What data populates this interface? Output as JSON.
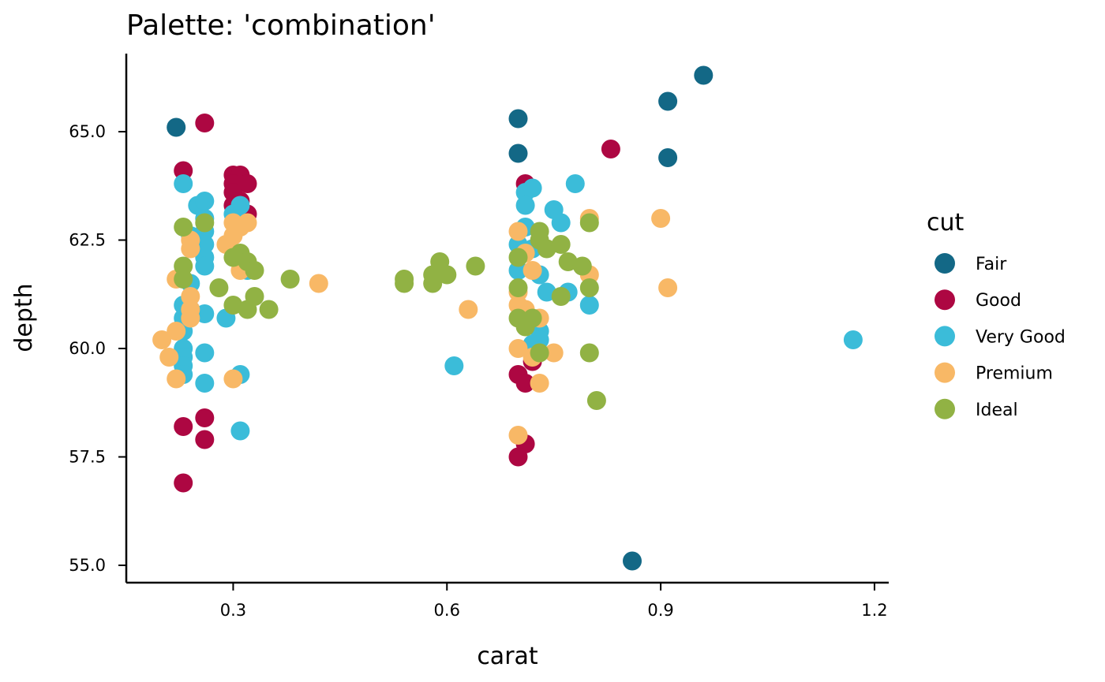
{
  "chart_data": {
    "type": "scatter",
    "title": "Palette: 'combination'",
    "xlabel": "carat",
    "ylabel": "depth",
    "xlim": [
      0.15,
      1.22
    ],
    "ylim": [
      54.6,
      66.8
    ],
    "x_ticks": [
      {
        "value": 0.3,
        "label": "0.3"
      },
      {
        "value": 0.6,
        "label": "0.6"
      },
      {
        "value": 0.9,
        "label": "0.9"
      },
      {
        "value": 1.2,
        "label": "1.2"
      }
    ],
    "y_ticks": [
      {
        "value": 55.0,
        "label": "55.0"
      },
      {
        "value": 57.5,
        "label": "57.5"
      },
      {
        "value": 60.0,
        "label": "60.0"
      },
      {
        "value": 62.5,
        "label": "62.5"
      },
      {
        "value": 65.0,
        "label": "65.0"
      }
    ],
    "grid": false,
    "legend": {
      "title": "cut",
      "position": "right"
    },
    "series": [
      {
        "name": "Fair",
        "color": "#136886",
        "points": [
          [
            0.22,
            65.1
          ],
          [
            0.7,
            65.3
          ],
          [
            0.7,
            64.5
          ],
          [
            0.86,
            55.1
          ],
          [
            0.91,
            65.7
          ],
          [
            0.91,
            64.4
          ],
          [
            0.96,
            66.3
          ]
        ]
      },
      {
        "name": "Good",
        "color": "#AD0742",
        "points": [
          [
            0.26,
            65.2
          ],
          [
            0.23,
            64.1
          ],
          [
            0.3,
            64.0
          ],
          [
            0.31,
            64.0
          ],
          [
            0.3,
            63.8
          ],
          [
            0.32,
            63.8
          ],
          [
            0.3,
            63.6
          ],
          [
            0.31,
            63.4
          ],
          [
            0.3,
            63.3
          ],
          [
            0.32,
            63.1
          ],
          [
            0.23,
            58.2
          ],
          [
            0.26,
            58.4
          ],
          [
            0.26,
            57.9
          ],
          [
            0.23,
            56.9
          ],
          [
            0.71,
            63.8
          ],
          [
            0.7,
            59.4
          ],
          [
            0.72,
            59.7
          ],
          [
            0.71,
            59.2
          ],
          [
            0.71,
            57.8
          ],
          [
            0.7,
            57.5
          ],
          [
            0.83,
            64.6
          ]
        ]
      },
      {
        "name": "Very Good",
        "color": "#3BBCD9",
        "points": [
          [
            0.23,
            63.8
          ],
          [
            0.25,
            63.3
          ],
          [
            0.26,
            63.4
          ],
          [
            0.26,
            63.0
          ],
          [
            0.26,
            62.7
          ],
          [
            0.24,
            62.6
          ],
          [
            0.26,
            62.4
          ],
          [
            0.26,
            62.1
          ],
          [
            0.26,
            61.9
          ],
          [
            0.24,
            61.5
          ],
          [
            0.23,
            61.0
          ],
          [
            0.24,
            60.9
          ],
          [
            0.23,
            60.7
          ],
          [
            0.23,
            60.4
          ],
          [
            0.23,
            60.0
          ],
          [
            0.23,
            59.8
          ],
          [
            0.23,
            59.6
          ],
          [
            0.23,
            59.4
          ],
          [
            0.26,
            60.8
          ],
          [
            0.26,
            59.9
          ],
          [
            0.26,
            59.2
          ],
          [
            0.29,
            60.7
          ],
          [
            0.3,
            63.1
          ],
          [
            0.31,
            63.3
          ],
          [
            0.32,
            61.8
          ],
          [
            0.31,
            59.4
          ],
          [
            0.31,
            58.1
          ],
          [
            0.61,
            59.6
          ],
          [
            0.71,
            63.6
          ],
          [
            0.72,
            63.7
          ],
          [
            0.71,
            63.3
          ],
          [
            0.71,
            62.8
          ],
          [
            0.7,
            62.4
          ],
          [
            0.72,
            62.3
          ],
          [
            0.7,
            61.8
          ],
          [
            0.73,
            61.7
          ],
          [
            0.74,
            61.3
          ],
          [
            0.73,
            60.4
          ],
          [
            0.73,
            60.2
          ],
          [
            0.72,
            60.1
          ],
          [
            0.75,
            63.2
          ],
          [
            0.76,
            62.9
          ],
          [
            0.78,
            63.8
          ],
          [
            0.77,
            61.3
          ],
          [
            0.8,
            61.0
          ],
          [
            1.17,
            60.2
          ]
        ]
      },
      {
        "name": "Premium",
        "color": "#F8B866",
        "points": [
          [
            0.2,
            60.2
          ],
          [
            0.21,
            59.8
          ],
          [
            0.22,
            59.3
          ],
          [
            0.22,
            61.6
          ],
          [
            0.22,
            60.4
          ],
          [
            0.24,
            62.5
          ],
          [
            0.24,
            62.3
          ],
          [
            0.24,
            61.2
          ],
          [
            0.24,
            60.9
          ],
          [
            0.24,
            60.7
          ],
          [
            0.29,
            62.4
          ],
          [
            0.3,
            62.9
          ],
          [
            0.3,
            62.6
          ],
          [
            0.31,
            62.8
          ],
          [
            0.32,
            62.9
          ],
          [
            0.31,
            61.8
          ],
          [
            0.3,
            59.3
          ],
          [
            0.42,
            61.5
          ],
          [
            0.63,
            60.9
          ],
          [
            0.7,
            62.7
          ],
          [
            0.7,
            61.3
          ],
          [
            0.7,
            61.0
          ],
          [
            0.7,
            60.0
          ],
          [
            0.71,
            62.2
          ],
          [
            0.72,
            61.8
          ],
          [
            0.71,
            60.9
          ],
          [
            0.73,
            60.7
          ],
          [
            0.72,
            59.8
          ],
          [
            0.73,
            59.2
          ],
          [
            0.75,
            59.9
          ],
          [
            0.7,
            58.0
          ],
          [
            0.8,
            63.0
          ],
          [
            0.8,
            61.7
          ],
          [
            0.9,
            63.0
          ],
          [
            0.91,
            61.4
          ]
        ]
      },
      {
        "name": "Ideal",
        "color": "#91B244",
        "points": [
          [
            0.23,
            62.8
          ],
          [
            0.26,
            62.9
          ],
          [
            0.23,
            61.9
          ],
          [
            0.23,
            61.6
          ],
          [
            0.28,
            61.4
          ],
          [
            0.3,
            62.1
          ],
          [
            0.3,
            61.0
          ],
          [
            0.31,
            62.2
          ],
          [
            0.32,
            62.0
          ],
          [
            0.33,
            61.8
          ],
          [
            0.32,
            60.9
          ],
          [
            0.33,
            61.2
          ],
          [
            0.35,
            60.9
          ],
          [
            0.38,
            61.6
          ],
          [
            0.54,
            61.6
          ],
          [
            0.54,
            61.5
          ],
          [
            0.58,
            61.7
          ],
          [
            0.58,
            61.5
          ],
          [
            0.59,
            62.0
          ],
          [
            0.6,
            61.7
          ],
          [
            0.64,
            61.9
          ],
          [
            0.7,
            62.1
          ],
          [
            0.7,
            61.4
          ],
          [
            0.7,
            60.7
          ],
          [
            0.71,
            60.5
          ],
          [
            0.72,
            60.7
          ],
          [
            0.73,
            62.7
          ],
          [
            0.73,
            62.5
          ],
          [
            0.74,
            62.3
          ],
          [
            0.73,
            59.9
          ],
          [
            0.76,
            62.4
          ],
          [
            0.76,
            61.2
          ],
          [
            0.77,
            62.0
          ],
          [
            0.79,
            61.9
          ],
          [
            0.8,
            62.9
          ],
          [
            0.8,
            61.4
          ],
          [
            0.8,
            59.9
          ],
          [
            0.81,
            58.8
          ]
        ]
      }
    ]
  }
}
